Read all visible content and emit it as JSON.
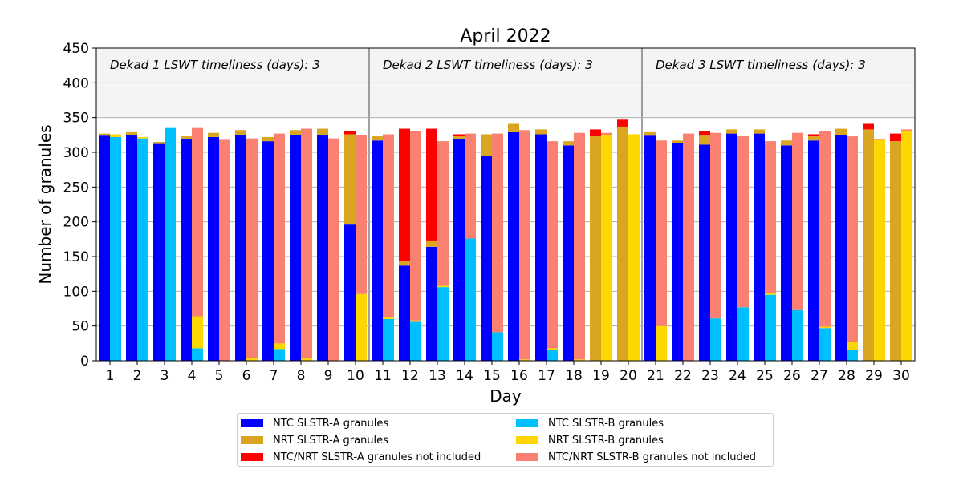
{
  "chart_data": {
    "type": "bar",
    "title": "April 2022",
    "xlabel": "Day",
    "ylabel": "Number of granules",
    "ylim": [
      0,
      450
    ],
    "yticks": [
      0,
      50,
      100,
      150,
      200,
      250,
      300,
      350,
      400,
      450
    ],
    "grid": true,
    "legend_position": "bottom",
    "categories": [
      "1",
      "2",
      "3",
      "4",
      "5",
      "6",
      "7",
      "8",
      "9",
      "10",
      "11",
      "12",
      "13",
      "14",
      "15",
      "16",
      "17",
      "18",
      "19",
      "20",
      "21",
      "22",
      "23",
      "24",
      "25",
      "26",
      "27",
      "28",
      "29",
      "30"
    ],
    "bands": [
      {
        "label": "Dekad 1 LSWT timeliness (days): 3",
        "from_day": 1,
        "to_day": 10
      },
      {
        "label": "Dekad 2 LSWT timeliness (days): 3",
        "from_day": 11,
        "to_day": 20
      },
      {
        "label": "Dekad 3 LSWT timeliness (days): 3",
        "from_day": 21,
        "to_day": 30
      }
    ],
    "band_ylim": [
      350,
      450
    ],
    "slstr_a": {
      "ntc": [
        324,
        325,
        312,
        319,
        322,
        325,
        316,
        325,
        325,
        196,
        317,
        137,
        164,
        319,
        295,
        329,
        326,
        310,
        0,
        0,
        324,
        313,
        311,
        327,
        327,
        310,
        317,
        325,
        0,
        0
      ],
      "nrt": [
        3,
        4,
        3,
        4,
        6,
        7,
        6,
        7,
        9,
        130,
        6,
        7,
        8,
        4,
        31,
        12,
        7,
        6,
        323,
        337,
        5,
        4,
        13,
        6,
        6,
        7,
        6,
        9,
        333,
        316
      ],
      "not_included": [
        0,
        0,
        0,
        0,
        0,
        0,
        0,
        0,
        0,
        4,
        0,
        190,
        162,
        3,
        0,
        0,
        0,
        0,
        10,
        10,
        0,
        0,
        6,
        0,
        0,
        0,
        3,
        0,
        8,
        11
      ]
    },
    "slstr_b": {
      "ntc": [
        322,
        320,
        335,
        18,
        0,
        0,
        17,
        0,
        0,
        0,
        60,
        56,
        106,
        176,
        41,
        0,
        15,
        0,
        0,
        0,
        0,
        0,
        61,
        77,
        95,
        73,
        47,
        15,
        0,
        0
      ],
      "nrt": [
        4,
        2,
        0,
        46,
        0,
        4,
        8,
        4,
        0,
        96,
        3,
        2,
        2,
        0,
        0,
        2,
        3,
        2,
        325,
        326,
        50,
        0,
        0,
        0,
        3,
        0,
        2,
        12,
        318,
        330
      ],
      "not_included": [
        0,
        0,
        0,
        271,
        318,
        316,
        302,
        330,
        320,
        229,
        263,
        273,
        208,
        151,
        286,
        330,
        298,
        326,
        3,
        0,
        267,
        327,
        267,
        246,
        218,
        255,
        282,
        296,
        1,
        3
      ]
    },
    "series": [
      {
        "name": "NTC SLSTR-A granules",
        "color": "#0000ff"
      },
      {
        "name": "NTC SLSTR-B granules",
        "color": "#00bfff"
      },
      {
        "name": "NRT SLSTR-A granules",
        "color": "#daa520"
      },
      {
        "name": "NRT SLSTR-B granules",
        "color": "#ffd700"
      },
      {
        "name": "NTC/NRT SLSTR-A granules not included",
        "color": "#ff0000"
      },
      {
        "name": "NTC/NRT SLSTR-B granules not included",
        "color": "#fa8072"
      }
    ]
  }
}
